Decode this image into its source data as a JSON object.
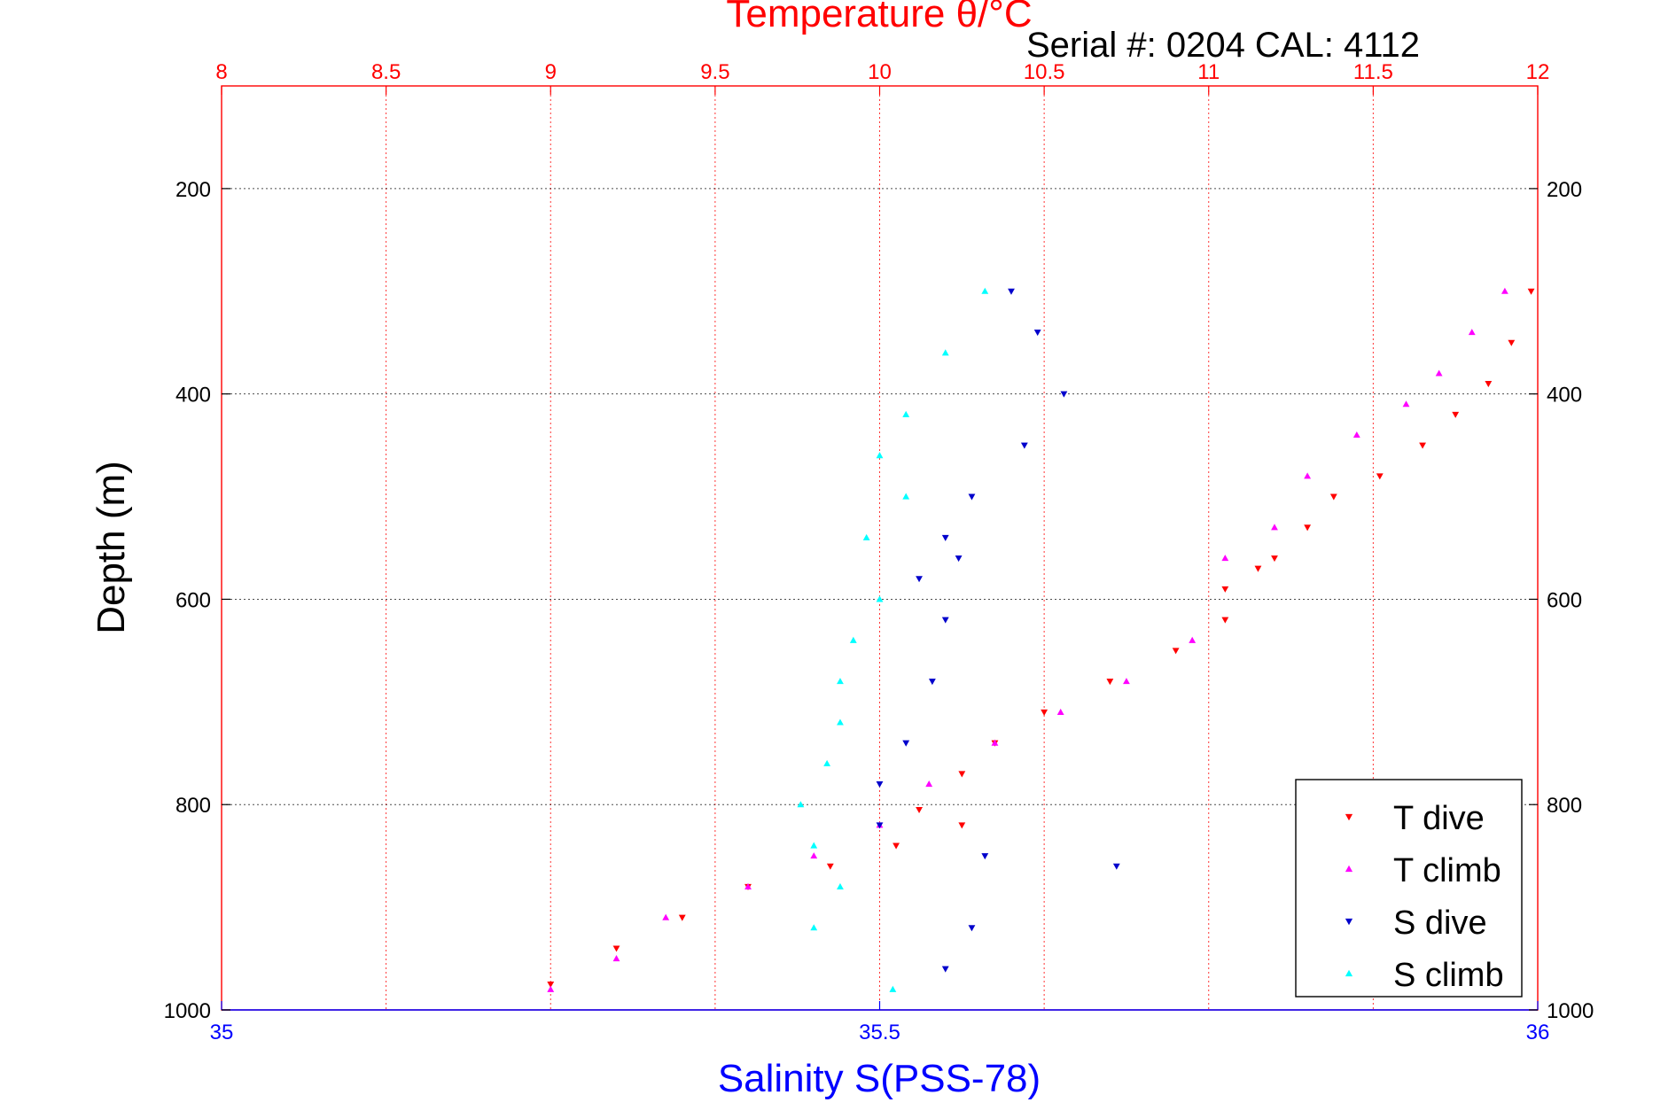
{
  "chart_data": {
    "type": "scatter",
    "title": "Temperature θ/°C",
    "subtitle": "Serial #: 0204  CAL: 4112",
    "ylabel": "Depth (m)",
    "xlabel": "Salinity S(PSS-78)",
    "top_axis_label": "Temperature θ/°C",
    "xlim_salinity": [
      35,
      36
    ],
    "xlim_temperature": [
      8,
      12
    ],
    "ylim_depth": [
      100,
      1000
    ],
    "y_reversed": true,
    "grid": true,
    "legend_position": "bottom-right",
    "temperature_ticks": [
      "8",
      "8.5",
      "9",
      "9.5",
      "10",
      "10.5",
      "11",
      "11.5",
      "12"
    ],
    "salinity_ticks": [
      "35",
      "35.5",
      "36"
    ],
    "depth_ticks": [
      "200",
      "400",
      "600",
      "800",
      "1000"
    ],
    "colors": {
      "temperature_axis": "#ff0000",
      "salinity_axis": "#0000ff",
      "t_dive": "#ff0000",
      "t_climb": "#ff00ff",
      "s_dive": "#0000cc",
      "s_climb": "#00ffff"
    },
    "series": [
      {
        "name": "T dive",
        "variable": "temperature",
        "marker": "triangle-down",
        "x": [
          11.98,
          11.92,
          11.85,
          11.75,
          11.65,
          11.52,
          11.38,
          11.3,
          11.2,
          11.15,
          11.05,
          11.05,
          10.9,
          10.7,
          10.5,
          10.35,
          10.25,
          10.12,
          10.25,
          10.05,
          9.85,
          9.6,
          9.4,
          9.2,
          9.0
        ],
        "y": [
          300,
          350,
          390,
          420,
          450,
          480,
          500,
          530,
          560,
          570,
          590,
          620,
          650,
          680,
          710,
          740,
          770,
          805,
          820,
          840,
          860,
          880,
          910,
          940,
          975
        ]
      },
      {
        "name": "T climb",
        "variable": "temperature",
        "marker": "triangle-up",
        "x": [
          11.9,
          11.8,
          11.7,
          11.6,
          11.45,
          11.3,
          11.2,
          11.05,
          10.95,
          10.75,
          10.55,
          10.35,
          10.15,
          10.0,
          9.8,
          9.6,
          9.35,
          9.2,
          9.0
        ],
        "y": [
          300,
          340,
          380,
          410,
          440,
          480,
          530,
          560,
          640,
          680,
          710,
          740,
          780,
          820,
          850,
          880,
          910,
          950,
          980
        ]
      },
      {
        "name": "S dive",
        "variable": "salinity",
        "marker": "triangle-down",
        "x": [
          35.6,
          35.62,
          35.64,
          35.61,
          35.57,
          35.55,
          35.56,
          35.53,
          35.55,
          35.54,
          35.52,
          35.5,
          35.5,
          35.58,
          35.68,
          35.57,
          35.55
        ],
        "y": [
          300,
          340,
          400,
          450,
          500,
          540,
          560,
          580,
          620,
          680,
          740,
          780,
          820,
          850,
          860,
          920,
          960
        ]
      },
      {
        "name": "S climb",
        "variable": "salinity",
        "marker": "triangle-up",
        "x": [
          35.58,
          35.55,
          35.52,
          35.5,
          35.52,
          35.49,
          35.5,
          35.48,
          35.47,
          35.47,
          35.46,
          35.44,
          35.45,
          35.47,
          35.45,
          35.51
        ],
        "y": [
          300,
          360,
          420,
          460,
          500,
          540,
          600,
          640,
          680,
          720,
          760,
          800,
          840,
          880,
          920,
          980
        ]
      }
    ]
  }
}
